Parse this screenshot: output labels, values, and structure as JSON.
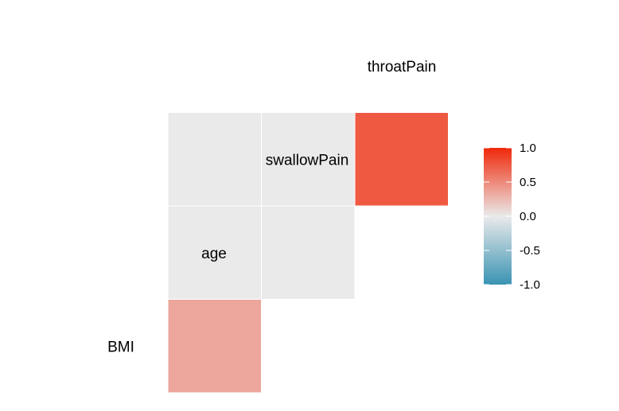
{
  "chart_data": {
    "type": "heatmap",
    "subtype": "lower-triangle correlation matrix",
    "variables": [
      "BMI",
      "age",
      "swallowPain",
      "throatPain"
    ],
    "cells": [
      {
        "row": "age",
        "col": "BMI",
        "value": 0.35
      },
      {
        "row": "swallowPain",
        "col": "BMI",
        "value": 0.0
      },
      {
        "row": "swallowPain",
        "col": "age",
        "value": 0.0
      },
      {
        "row": "throatPain",
        "col": "BMI",
        "value": 0.0
      },
      {
        "row": "throatPain",
        "col": "age",
        "value": 0.0
      },
      {
        "row": "throatPain",
        "col": "swallowPain",
        "value": 0.75
      }
    ],
    "legend": {
      "range": [
        -1.0,
        1.0
      ],
      "ticks": [
        1.0,
        0.5,
        0.0,
        -0.5,
        -1.0
      ],
      "tick_labels": [
        "1.0",
        "0.5",
        "0.0",
        "-0.5",
        "-1.0"
      ],
      "colors": {
        "low": "#3a94b3",
        "mid": "#eaeaea",
        "high": "#f0280a"
      }
    },
    "title": "",
    "xlabel": "",
    "ylabel": "",
    "grid": false
  }
}
